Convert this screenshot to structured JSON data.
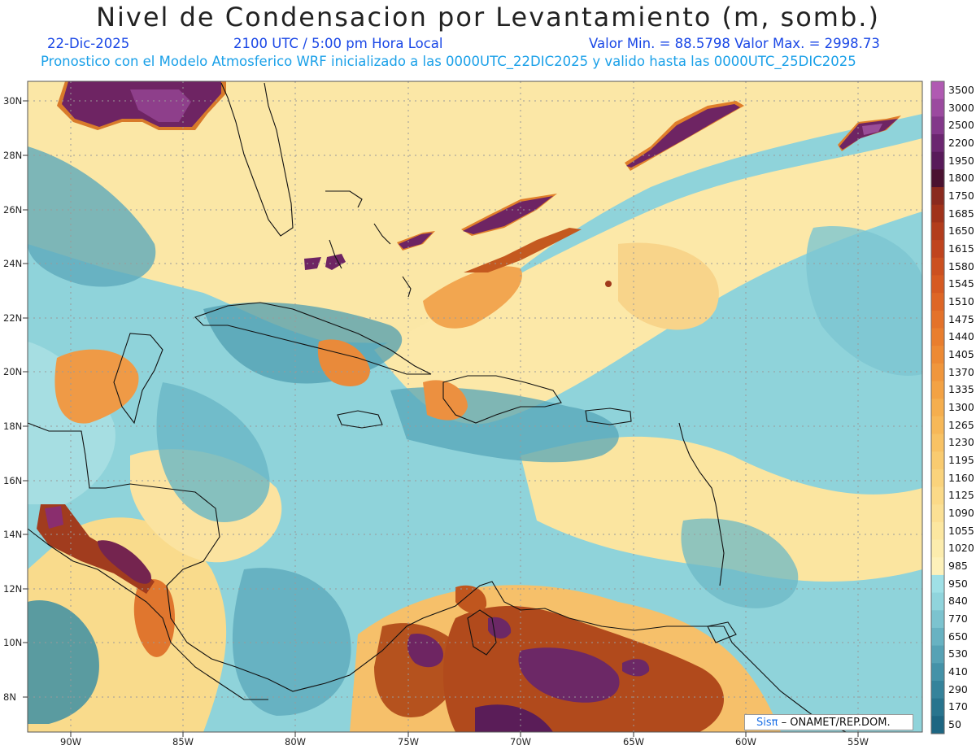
{
  "header": {
    "title": "Nivel de Condensacion por Levantamiento (m, somb.)",
    "date": "22-Dic-2025",
    "time": "2100 UTC / 5:00 pm Hora Local",
    "min_max": "Valor Min. = 88.5798  Valor Max. = 2998.73",
    "model_line": "Pronostico con el Modelo Atmosferico WRF inicializado a las 0000UTC_22DIC2025 y valido hasta las  0000UTC_25DIC2025"
  },
  "map": {
    "lat_labels": [
      "30N",
      "28N",
      "26N",
      "24N",
      "22N",
      "20N",
      "18N",
      "16N",
      "14N",
      "12N",
      "10N",
      "8N"
    ],
    "lon_labels": [
      "90W",
      "85W",
      "80W",
      "75W",
      "70W",
      "65W",
      "60W",
      "55W"
    ],
    "credit": {
      "sis": "Sisπ",
      "org": " – ONAMET/REP.DOM."
    }
  },
  "colorbar": {
    "labels": [
      "3500",
      "3000",
      "2500",
      "2200",
      "1950",
      "1800",
      "1750",
      "1685",
      "1650",
      "1615",
      "1580",
      "1545",
      "1510",
      "1475",
      "1440",
      "1405",
      "1370",
      "1335",
      "1300",
      "1265",
      "1230",
      "1195",
      "1160",
      "1125",
      "1090",
      "1055",
      "1020",
      "985",
      "950",
      "840",
      "770",
      "650",
      "530",
      "410",
      "290",
      "170",
      "50"
    ],
    "colors": [
      "#b05ab2",
      "#9b4a9f",
      "#83388a",
      "#6b2670",
      "#581a5a",
      "#4a1230",
      "#8a2a1e",
      "#a0321a",
      "#b23c1c",
      "#c0441e",
      "#cc5020",
      "#d65a22",
      "#de6626",
      "#e4722a",
      "#e97e2e",
      "#ed8a34",
      "#f0963c",
      "#f3a244",
      "#f5ae4e",
      "#f7b858",
      "#f8c264",
      "#f9cb70",
      "#fad37c",
      "#fbda88",
      "#fbe094",
      "#fce7a0",
      "#fcecad",
      "#fdf1ba",
      "#9fe0e6",
      "#90d4dc",
      "#7cc3cf",
      "#68b2c2",
      "#56a2b5",
      "#4492a8",
      "#35839b",
      "#28748e",
      "#1d6682"
    ]
  }
}
